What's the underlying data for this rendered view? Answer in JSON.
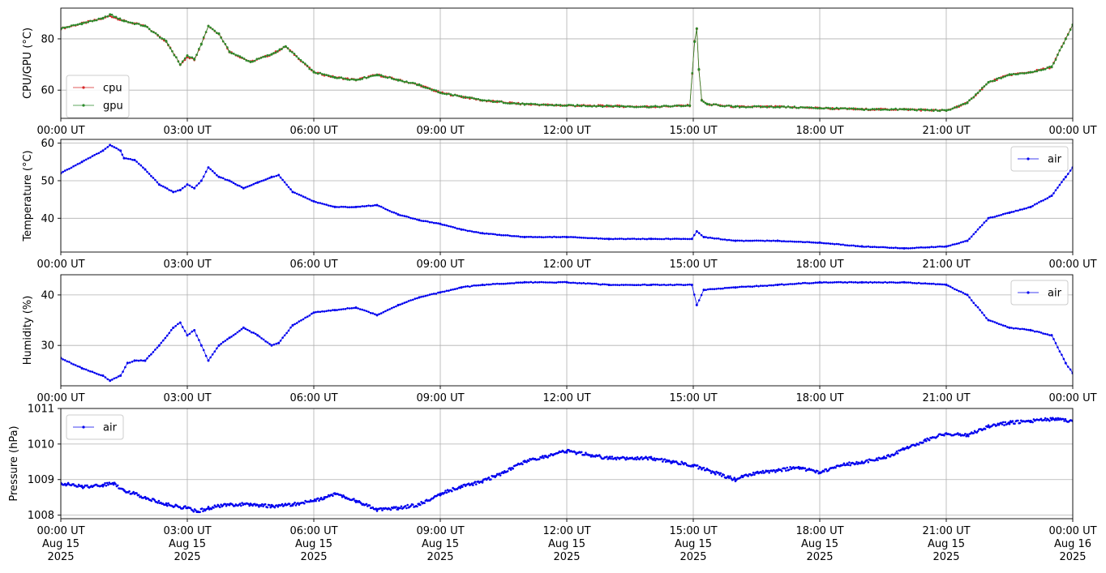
{
  "chart_data": [
    {
      "type": "line",
      "ylabel": "CPU/GPU (°C)",
      "x_ticks": [
        "00:00 UT",
        "03:00 UT",
        "06:00 UT",
        "09:00 UT",
        "12:00 UT",
        "15:00 UT",
        "18:00 UT",
        "21:00 UT",
        "00:00 UT"
      ],
      "xlim": [
        "2025-08-15 00:00",
        "2025-08-16 00:00"
      ],
      "ylim": [
        49,
        92
      ],
      "y_ticks": [
        60,
        80
      ],
      "grid": true,
      "legend": "lower-left",
      "series": [
        {
          "name": "cpu",
          "color": "#d62728",
          "x": [
            "00:00",
            "00:30",
            "01:00",
            "01:10",
            "01:30",
            "02:00",
            "02:30",
            "02:50",
            "03:00",
            "03:10",
            "03:20",
            "03:30",
            "03:45",
            "04:00",
            "04:30",
            "05:00",
            "05:20",
            "06:00",
            "06:30",
            "07:00",
            "07:30",
            "08:00",
            "08:30",
            "09:00",
            "10:00",
            "11:00",
            "12:00",
            "13:00",
            "14:00",
            "14:55",
            "15:02",
            "15:05",
            "15:08",
            "15:12",
            "15:20",
            "16:00",
            "17:00",
            "18:00",
            "19:00",
            "20:00",
            "21:00",
            "21:30",
            "22:00",
            "22:30",
            "23:00",
            "23:30",
            "23:50",
            "24:00"
          ],
          "y": [
            84,
            86,
            88,
            89,
            87,
            85,
            79,
            70,
            73,
            72,
            78,
            85,
            82,
            75,
            71,
            74,
            77,
            67,
            65,
            64,
            66,
            64,
            62,
            59,
            56,
            54.5,
            54,
            53.8,
            53.5,
            54,
            79,
            84,
            68,
            56,
            54.5,
            53.5,
            53.5,
            53,
            52.5,
            52.5,
            52,
            55,
            63,
            66,
            67,
            69,
            80,
            85.5
          ]
        },
        {
          "name": "gpu",
          "color": "#2a8a2a",
          "x": [
            "00:00",
            "00:30",
            "01:00",
            "01:10",
            "01:30",
            "02:00",
            "02:30",
            "02:50",
            "03:00",
            "03:10",
            "03:20",
            "03:30",
            "03:45",
            "04:00",
            "04:30",
            "05:00",
            "05:20",
            "06:00",
            "06:30",
            "07:00",
            "07:30",
            "08:00",
            "08:30",
            "09:00",
            "10:00",
            "11:00",
            "12:00",
            "13:00",
            "14:00",
            "14:55",
            "15:02",
            "15:05",
            "15:08",
            "15:12",
            "15:20",
            "16:00",
            "17:00",
            "18:00",
            "19:00",
            "20:00",
            "21:00",
            "21:30",
            "22:00",
            "22:30",
            "23:00",
            "23:30",
            "23:50",
            "24:00"
          ],
          "y": [
            84,
            86,
            88,
            89.5,
            87,
            85,
            79,
            70,
            73.5,
            72,
            78,
            85,
            82,
            75,
            71,
            74,
            77,
            67,
            65,
            64,
            66,
            64,
            62,
            59,
            56,
            54.5,
            54,
            53.8,
            53.5,
            54,
            79,
            84,
            68,
            56,
            54.5,
            53.5,
            53.5,
            53,
            52.5,
            52.5,
            52,
            55,
            63,
            66,
            67,
            69,
            80,
            85.5
          ]
        }
      ]
    },
    {
      "type": "line",
      "ylabel": "Temperature (°C)",
      "x_ticks": [
        "00:00 UT",
        "03:00 UT",
        "06:00 UT",
        "09:00 UT",
        "12:00 UT",
        "15:00 UT",
        "18:00 UT",
        "21:00 UT",
        "00:00 UT"
      ],
      "xlim": [
        "2025-08-15 00:00",
        "2025-08-16 00:00"
      ],
      "ylim": [
        31,
        61
      ],
      "y_ticks": [
        40,
        50,
        60
      ],
      "grid": true,
      "legend": "upper-right",
      "series": [
        {
          "name": "air",
          "color": "#0000ee",
          "x": [
            "00:00",
            "00:30",
            "01:00",
            "01:10",
            "01:25",
            "01:30",
            "01:45",
            "02:00",
            "02:20",
            "02:40",
            "02:50",
            "03:00",
            "03:10",
            "03:20",
            "03:30",
            "03:45",
            "04:00",
            "04:20",
            "04:40",
            "05:00",
            "05:10",
            "05:30",
            "06:00",
            "06:30",
            "07:00",
            "07:30",
            "08:00",
            "08:30",
            "09:00",
            "09:30",
            "10:00",
            "11:00",
            "12:00",
            "13:00",
            "14:00",
            "14:58",
            "15:05",
            "15:15",
            "16:00",
            "17:00",
            "18:00",
            "19:00",
            "20:00",
            "21:00",
            "21:30",
            "22:00",
            "22:30",
            "23:00",
            "23:30",
            "23:50",
            "24:00"
          ],
          "y": [
            52,
            55,
            58,
            59.5,
            58,
            56,
            55.5,
            53,
            49,
            47,
            47.5,
            49,
            48,
            50,
            53.5,
            51,
            50,
            48,
            49.5,
            51,
            51.5,
            47,
            44.5,
            43,
            43,
            43.5,
            41,
            39.5,
            38.5,
            37,
            36,
            35,
            35,
            34.5,
            34.5,
            34.5,
            36.5,
            35,
            34,
            34,
            33.5,
            32.5,
            32,
            32.5,
            34,
            40,
            41.5,
            43,
            46,
            51,
            53.5
          ]
        }
      ]
    },
    {
      "type": "line",
      "ylabel": "Humidity (%)",
      "x_ticks": [
        "00:00 UT",
        "03:00 UT",
        "06:00 UT",
        "09:00 UT",
        "12:00 UT",
        "15:00 UT",
        "18:00 UT",
        "21:00 UT",
        "00:00 UT"
      ],
      "xlim": [
        "2025-08-15 00:00",
        "2025-08-16 00:00"
      ],
      "ylim": [
        22,
        44
      ],
      "y_ticks": [
        30,
        40
      ],
      "grid": true,
      "legend": "upper-right",
      "series": [
        {
          "name": "air",
          "color": "#0000ee",
          "x": [
            "00:00",
            "00:30",
            "01:00",
            "01:10",
            "01:25",
            "01:35",
            "01:45",
            "02:00",
            "02:20",
            "02:40",
            "02:50",
            "03:00",
            "03:10",
            "03:20",
            "03:30",
            "03:45",
            "04:00",
            "04:20",
            "04:40",
            "05:00",
            "05:10",
            "05:30",
            "06:00",
            "06:30",
            "07:00",
            "07:30",
            "08:00",
            "08:30",
            "09:00",
            "09:30",
            "10:00",
            "11:00",
            "12:00",
            "13:00",
            "14:00",
            "14:58",
            "15:05",
            "15:15",
            "16:00",
            "17:00",
            "18:00",
            "19:00",
            "20:00",
            "21:00",
            "21:30",
            "22:00",
            "22:30",
            "23:00",
            "23:30",
            "23:50",
            "24:00"
          ],
          "y": [
            27.5,
            25.5,
            24,
            23,
            24,
            26.5,
            27,
            27,
            30,
            33.5,
            34.5,
            32,
            33,
            30,
            27,
            30,
            31.5,
            33.5,
            32,
            30,
            30.5,
            34,
            36.5,
            37,
            37.5,
            36,
            38,
            39.5,
            40.5,
            41.5,
            42,
            42.5,
            42.5,
            42,
            42,
            42,
            38,
            41,
            41.5,
            42,
            42.5,
            42.5,
            42.5,
            42,
            40,
            35,
            33.5,
            33,
            32,
            26.5,
            24.5
          ]
        }
      ]
    },
    {
      "type": "scatter",
      "ylabel": "Pressure (hPa)",
      "x_ticks": [
        "00:00 UT\nAug 15\n2025",
        "03:00 UT\nAug 15\n2025",
        "06:00 UT\nAug 15\n2025",
        "09:00 UT\nAug 15\n2025",
        "12:00 UT\nAug 15\n2025",
        "15:00 UT\nAug 15\n2025",
        "18:00 UT\nAug 15\n2025",
        "21:00 UT\nAug 15\n2025",
        "00:00 UT\nAug 16\n2025"
      ],
      "xlim": [
        "2025-08-15 00:00",
        "2025-08-16 00:00"
      ],
      "ylim": [
        1007.9,
        1011
      ],
      "y_ticks": [
        1008,
        1009,
        1010,
        1011
      ],
      "grid": true,
      "legend": "upper-left",
      "series": [
        {
          "name": "air",
          "color": "#0000ee",
          "x": [
            "00:00",
            "00:30",
            "01:00",
            "01:15",
            "01:30",
            "02:00",
            "02:30",
            "03:00",
            "03:15",
            "03:30",
            "04:00",
            "04:30",
            "05:00",
            "05:30",
            "06:00",
            "06:15",
            "06:30",
            "07:00",
            "07:30",
            "08:00",
            "08:30",
            "09:00",
            "09:30",
            "10:00",
            "10:30",
            "11:00",
            "11:30",
            "12:00",
            "12:30",
            "13:00",
            "13:30",
            "14:00",
            "14:30",
            "15:00",
            "15:30",
            "16:00",
            "16:30",
            "17:00",
            "17:30",
            "18:00",
            "18:30",
            "19:00",
            "19:30",
            "20:00",
            "20:30",
            "21:00",
            "21:30",
            "22:00",
            "22:30",
            "23:00",
            "23:30",
            "24:00"
          ],
          "y": [
            1008.9,
            1008.8,
            1008.85,
            1008.9,
            1008.7,
            1008.5,
            1008.3,
            1008.2,
            1008.1,
            1008.2,
            1008.3,
            1008.3,
            1008.25,
            1008.3,
            1008.4,
            1008.5,
            1008.6,
            1008.4,
            1008.15,
            1008.2,
            1008.3,
            1008.6,
            1008.8,
            1008.95,
            1009.2,
            1009.5,
            1009.65,
            1009.8,
            1009.7,
            1009.6,
            1009.6,
            1009.6,
            1009.5,
            1009.4,
            1009.2,
            1009.0,
            1009.2,
            1009.25,
            1009.35,
            1009.2,
            1009.4,
            1009.5,
            1009.6,
            1009.85,
            1010.1,
            1010.3,
            1010.25,
            1010.5,
            1010.6,
            1010.65,
            1010.7,
            1010.65
          ]
        }
      ]
    }
  ]
}
